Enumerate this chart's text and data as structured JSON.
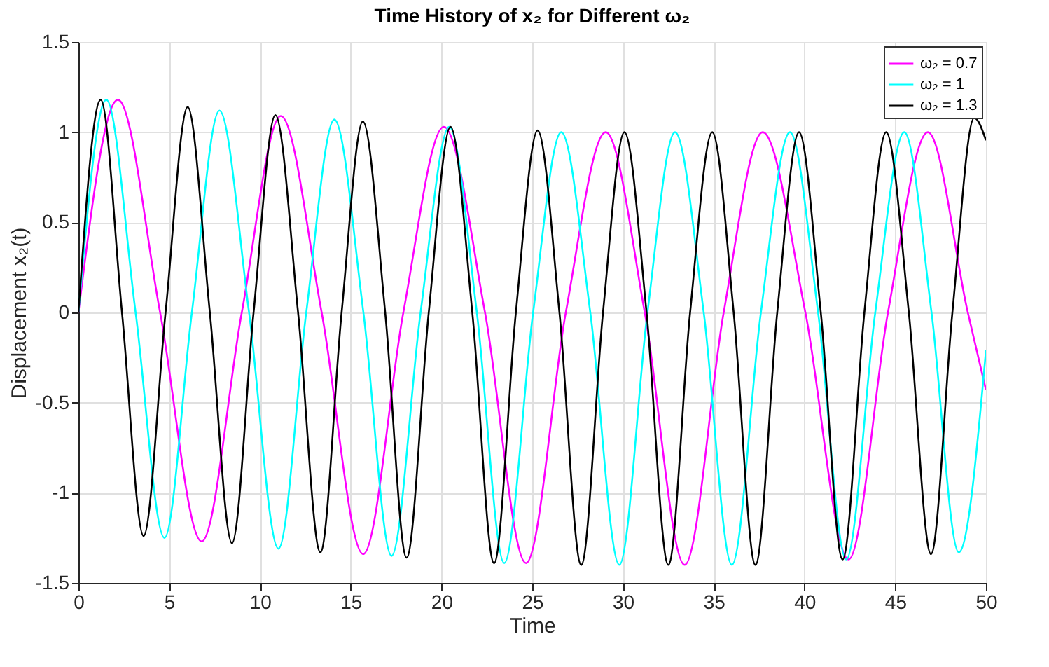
{
  "chart_data": {
    "type": "line",
    "title": "Time History of x₂ for Different ω₂",
    "xlabel": "Time",
    "ylabel": "Displacement x₂(t)",
    "xlim": [
      0,
      50
    ],
    "xticks": [
      0,
      5,
      10,
      15,
      20,
      25,
      30,
      35,
      40,
      45,
      50
    ],
    "ylim": [
      -1.5,
      1.5
    ],
    "yticks": [
      -1.5,
      -1,
      -0.5,
      0,
      0.5,
      1,
      1.5
    ],
    "grid": true,
    "legend": "top right",
    "line_style": "solid",
    "marker": "none",
    "series": [
      {
        "name": "ω₂ = 0.7",
        "color": "#ff00ff",
        "x": [
          0,
          2.18,
          4.5,
          6.79,
          9.0,
          11.15,
          13.4,
          15.69,
          17.9,
          20.13,
          22.4,
          24.66,
          26.85,
          29.05,
          31.2,
          33.4,
          35.55,
          37.7,
          40.05,
          42.43,
          44.6,
          46.8,
          49.0,
          50
        ],
        "values": [
          0,
          1.18,
          0,
          -1.27,
          0,
          1.09,
          0,
          -1.34,
          0,
          1.03,
          0,
          -1.39,
          0,
          1.0,
          0,
          -1.4,
          0,
          1.0,
          0,
          -1.37,
          0,
          1.0,
          0,
          -0.43
        ]
      },
      {
        "name": "ω₂ = 1",
        "color": "#00ffff",
        "x": [
          0,
          1.54,
          3.15,
          4.74,
          6.25,
          7.77,
          9.4,
          11.02,
          12.55,
          14.1,
          15.7,
          17.25,
          18.85,
          20.43,
          21.95,
          23.46,
          25.05,
          26.6,
          28.2,
          29.8,
          31.35,
          32.87,
          34.45,
          36.0,
          37.6,
          39.2,
          40.75,
          42.3,
          43.9,
          45.5,
          47.0,
          48.5,
          50
        ],
        "values": [
          0,
          1.18,
          0,
          -1.25,
          0,
          1.12,
          0,
          -1.31,
          0,
          1.07,
          0,
          -1.35,
          0,
          1.03,
          0,
          -1.39,
          0,
          1.0,
          0,
          -1.4,
          0,
          1.0,
          0,
          -1.4,
          0,
          1.0,
          0,
          -1.37,
          0,
          1.0,
          0,
          -1.33,
          -0.21
        ]
      },
      {
        "name": "ω₂ = 1.3",
        "color": "#000000",
        "x": [
          0,
          1.23,
          2.4,
          3.59,
          4.8,
          6.02,
          7.24,
          8.46,
          9.65,
          10.85,
          12.1,
          13.33,
          14.5,
          15.67,
          16.9,
          18.08,
          19.3,
          20.5,
          21.7,
          22.9,
          24.1,
          25.3,
          26.5,
          27.7,
          28.9,
          30.08,
          31.3,
          32.5,
          33.7,
          34.92,
          36.1,
          37.3,
          38.5,
          39.7,
          40.9,
          42.1,
          43.3,
          44.5,
          45.75,
          46.97,
          48.15,
          49.35,
          50
        ],
        "values": [
          0,
          1.18,
          0,
          -1.24,
          0,
          1.14,
          0,
          -1.28,
          0,
          1.095,
          0,
          -1.33,
          0,
          1.06,
          0,
          -1.36,
          0,
          1.03,
          0,
          -1.39,
          0,
          1.01,
          0,
          -1.4,
          0,
          1.0,
          0,
          -1.4,
          0,
          1.0,
          0,
          -1.4,
          0,
          1.0,
          0,
          -1.37,
          0,
          1.0,
          0,
          -1.34,
          0,
          1.08,
          0.955
        ]
      }
    ]
  }
}
